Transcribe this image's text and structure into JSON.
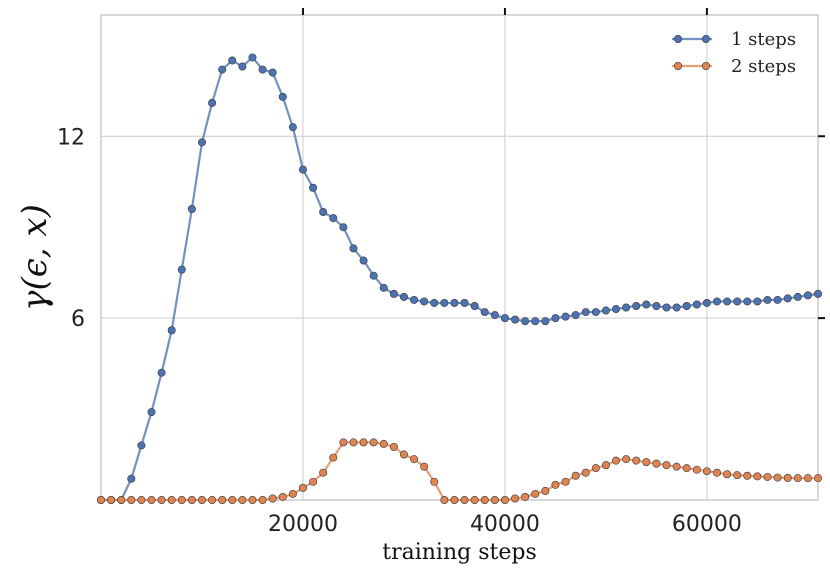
{
  "chart_data": {
    "type": "line",
    "xlabel": "training steps",
    "ylabel": "γ(ϵ, x)",
    "xlim": [
      0,
      71000
    ],
    "ylim": [
      0,
      16
    ],
    "grid": true,
    "legend_position": "top-right",
    "x_ticks": [
      20000,
      40000,
      60000
    ],
    "x_tick_labels": [
      "20000",
      "40000",
      "60000"
    ],
    "y_ticks": [
      6,
      12
    ],
    "y_tick_labels": [
      "6",
      "12"
    ],
    "series": [
      {
        "name": "1 steps",
        "color": "#4c72b0",
        "x": [
          0,
          1000,
          2000,
          3000,
          4000,
          5000,
          6000,
          7000,
          8000,
          9000,
          10000,
          11000,
          12000,
          13000,
          14000,
          15000,
          16000,
          17000,
          18000,
          19000,
          20000,
          21000,
          22000,
          23000,
          24000,
          25000,
          26000,
          27000,
          28000,
          29000,
          30000,
          31000,
          32000,
          33000,
          34000,
          35000,
          36000,
          37000,
          38000,
          39000,
          40000,
          41000,
          42000,
          43000,
          44000,
          45000,
          46000,
          47000,
          48000,
          49000,
          50000,
          51000,
          52000,
          53000,
          54000,
          55000,
          56000,
          57000,
          58000,
          59000,
          60000,
          61000,
          62000,
          63000,
          64000,
          65000,
          66000,
          67000,
          68000,
          69000,
          70000,
          71000
        ],
        "y": [
          0,
          0,
          0,
          0.7,
          1.8,
          2.9,
          4.2,
          5.6,
          7.6,
          9.6,
          11.8,
          13.1,
          14.2,
          14.5,
          14.3,
          14.6,
          14.2,
          14.1,
          13.3,
          12.3,
          10.9,
          10.3,
          9.5,
          9.3,
          9.0,
          8.3,
          7.9,
          7.4,
          7.0,
          6.8,
          6.7,
          6.6,
          6.55,
          6.5,
          6.5,
          6.5,
          6.5,
          6.4,
          6.2,
          6.1,
          6.0,
          5.95,
          5.9,
          5.9,
          5.9,
          6.0,
          6.05,
          6.1,
          6.2,
          6.2,
          6.25,
          6.3,
          6.35,
          6.4,
          6.45,
          6.4,
          6.35,
          6.35,
          6.4,
          6.45,
          6.5,
          6.55,
          6.55,
          6.55,
          6.55,
          6.55,
          6.6,
          6.6,
          6.65,
          6.7,
          6.75,
          6.8
        ]
      },
      {
        "name": "2 steps",
        "color": "#dd8452",
        "x": [
          0,
          1000,
          2000,
          3000,
          4000,
          5000,
          6000,
          7000,
          8000,
          9000,
          10000,
          11000,
          12000,
          13000,
          14000,
          15000,
          16000,
          17000,
          18000,
          19000,
          20000,
          21000,
          22000,
          23000,
          24000,
          25000,
          26000,
          27000,
          28000,
          29000,
          30000,
          31000,
          32000,
          33000,
          34000,
          35000,
          36000,
          37000,
          38000,
          39000,
          40000,
          41000,
          42000,
          43000,
          44000,
          45000,
          46000,
          47000,
          48000,
          49000,
          50000,
          51000,
          52000,
          53000,
          54000,
          55000,
          56000,
          57000,
          58000,
          59000,
          60000,
          61000,
          62000,
          63000,
          64000,
          65000,
          66000,
          67000,
          68000,
          69000,
          70000,
          71000
        ],
        "y": [
          0,
          0,
          0,
          0,
          0,
          0,
          0,
          0,
          0,
          0,
          0,
          0,
          0,
          0,
          0,
          0,
          0,
          0.05,
          0.1,
          0.2,
          0.4,
          0.6,
          0.9,
          1.4,
          1.9,
          1.9,
          1.9,
          1.9,
          1.85,
          1.75,
          1.5,
          1.35,
          1.1,
          0.6,
          0,
          0,
          0,
          0,
          0,
          0,
          0,
          0.05,
          0.1,
          0.2,
          0.3,
          0.5,
          0.6,
          0.8,
          0.9,
          1.05,
          1.15,
          1.3,
          1.35,
          1.3,
          1.25,
          1.2,
          1.15,
          1.1,
          1.05,
          1.0,
          0.95,
          0.9,
          0.85,
          0.82,
          0.8,
          0.78,
          0.76,
          0.74,
          0.73,
          0.72,
          0.72,
          0.72
        ]
      }
    ]
  }
}
